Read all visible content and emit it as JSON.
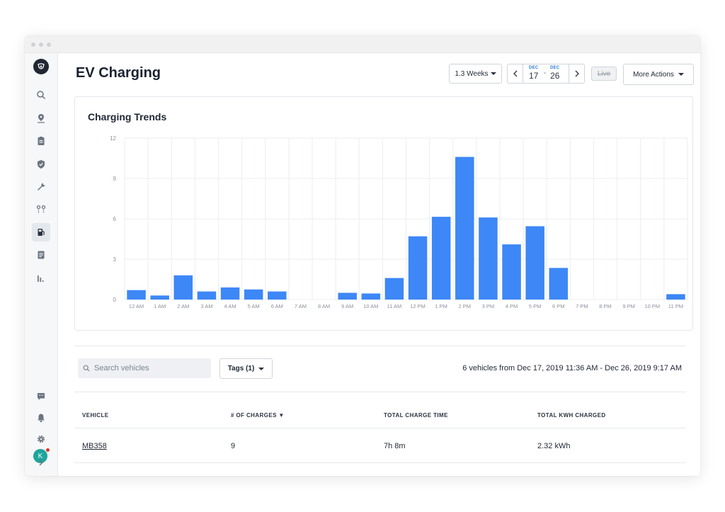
{
  "page": {
    "title": "EV Charging"
  },
  "toolbar": {
    "range_label": "1.3 Weeks",
    "date_start": {
      "month": "DEC",
      "day": "17"
    },
    "date_sep": "-",
    "date_end": {
      "month": "DEC",
      "day": "26"
    },
    "live_label": "Live",
    "more_actions_label": "More Actions"
  },
  "sidebar": {
    "icons": [
      "search-icon",
      "map-pin-icon",
      "clipboard-icon",
      "shield-icon",
      "wrench-icon",
      "route-icon",
      "fuel-pump-icon",
      "document-icon",
      "bar-chart-icon"
    ],
    "bottom_icons": [
      "message-icon",
      "bell-icon",
      "gear-icon"
    ],
    "avatar_initial": "K",
    "expand_icon": "chevron-right-icon"
  },
  "chart_card": {
    "title": "Charging Trends"
  },
  "chart_data": {
    "type": "bar",
    "title": "Charging Trends",
    "categories": [
      "12 AM",
      "1 AM",
      "2 AM",
      "3 AM",
      "4 AM",
      "5 AM",
      "6 AM",
      "7 AM",
      "8 AM",
      "9 AM",
      "10 AM",
      "11 AM",
      "12 PM",
      "1 PM",
      "2 PM",
      "3 PM",
      "4 PM",
      "5 PM",
      "6 PM",
      "7 PM",
      "8 PM",
      "9 PM",
      "10 PM",
      "11 PM"
    ],
    "values": [
      0.7,
      0.3,
      1.8,
      0.6,
      0.9,
      0.75,
      0.6,
      0,
      0,
      0.5,
      0.45,
      1.6,
      4.7,
      6.15,
      10.6,
      6.1,
      4.1,
      5.45,
      2.35,
      0,
      0,
      0,
      0,
      0.4
    ],
    "yticks": [
      0,
      3,
      6,
      9,
      12
    ],
    "ylim": [
      0,
      12
    ],
    "grid": true,
    "color": "#3d87f7"
  },
  "filters": {
    "search_placeholder": "Search vehicles",
    "tags_label": "Tags (1)",
    "summary": "6 vehicles from Dec 17, 2019 11:36 AM - Dec 26, 2019 9:17 AM"
  },
  "table": {
    "headers": [
      "VEHICLE",
      "# OF CHARGES ▼",
      "TOTAL CHARGE TIME",
      "TOTAL KWH CHARGED"
    ],
    "rows": [
      [
        "MB358",
        "9",
        "7h 8m",
        "2.32 kWh"
      ]
    ]
  }
}
